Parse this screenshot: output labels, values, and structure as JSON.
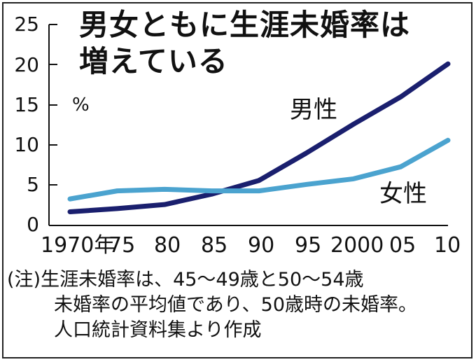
{
  "chart_data": {
    "type": "line",
    "title": "男女ともに生涯未婚率は増えている",
    "title_lines": [
      "男女ともに生涯未婚率は",
      "増えている"
    ],
    "ylabel": "%",
    "ylim": [
      0,
      25
    ],
    "yticks": [
      "0",
      "5",
      "10",
      "15",
      "20",
      "25"
    ],
    "categories": [
      "1970年",
      "75",
      "80",
      "85",
      "90",
      "95",
      "2000",
      "05",
      "10"
    ],
    "x": [
      1970,
      1975,
      1980,
      1985,
      1990,
      1995,
      2000,
      2005,
      2010
    ],
    "series": [
      {
        "name": "男性",
        "color": "#1a1f6e",
        "values": [
          1.7,
          2.1,
          2.6,
          3.9,
          5.6,
          9.0,
          12.6,
          16.0,
          20.1
        ]
      },
      {
        "name": "女性",
        "color": "#4ba3cf",
        "values": [
          3.3,
          4.3,
          4.5,
          4.3,
          4.3,
          5.1,
          5.8,
          7.3,
          10.6
        ]
      }
    ],
    "grid": false,
    "legend": "inline labels"
  },
  "footnote": [
    "(注)生涯未婚率は、45～49歳と50～54歳",
    "未婚率の平均値であり、50歳時の未婚率。",
    "人口統計資料集より作成"
  ]
}
